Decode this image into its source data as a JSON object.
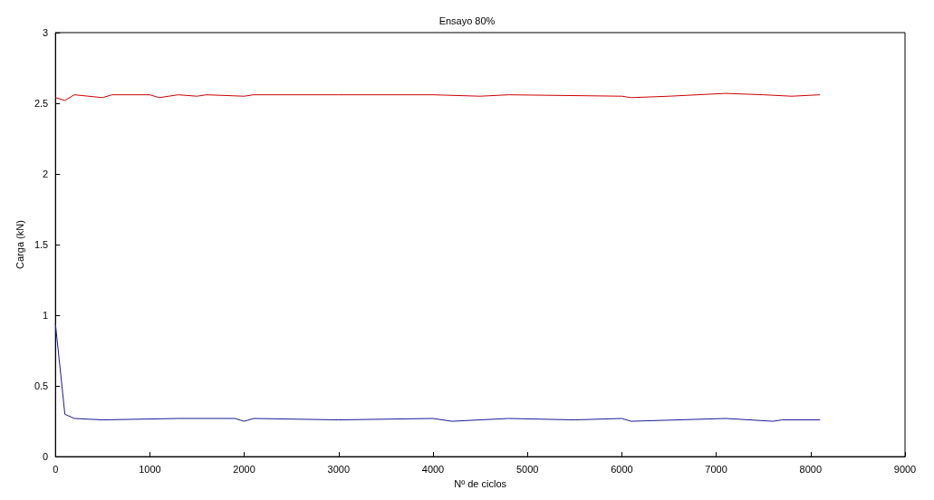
{
  "chart_data": {
    "type": "line",
    "title": "Ensayo 80%",
    "xlabel": "Nº de ciclos",
    "ylabel": "Carga (kN)",
    "xlim": [
      0,
      9000
    ],
    "xticks": [
      0,
      1000,
      2000,
      3000,
      4000,
      5000,
      6000,
      7000,
      8000,
      9000
    ],
    "ylim": [
      0,
      3
    ],
    "yticks": [
      0,
      0.5,
      1,
      1.5,
      2,
      2.5,
      3
    ],
    "grid": false,
    "marker": "none",
    "line_style": "solid",
    "series": [
      {
        "color": "#cc0000",
        "x": [
          0,
          100,
          200,
          500,
          600,
          1000,
          1100,
          1300,
          1500,
          1600,
          2000,
          2100,
          3000,
          4000,
          4500,
          4800,
          6000,
          6100,
          6500,
          7100,
          7500,
          7800,
          8100
        ],
        "values": [
          2.54,
          2.52,
          2.56,
          2.54,
          2.56,
          2.56,
          2.54,
          2.56,
          2.55,
          2.56,
          2.55,
          2.56,
          2.56,
          2.56,
          2.55,
          2.56,
          2.55,
          2.54,
          2.55,
          2.57,
          2.56,
          2.55,
          2.56
        ]
      },
      {
        "color": "#1a1a99",
        "x": [
          0,
          100,
          200,
          500,
          1300,
          1900,
          2000,
          2100,
          3000,
          4000,
          4200,
          4800,
          5500,
          6000,
          6100,
          7100,
          7600,
          7700,
          8100
        ],
        "values": [
          0.94,
          0.3,
          0.27,
          0.26,
          0.27,
          0.27,
          0.25,
          0.27,
          0.26,
          0.27,
          0.25,
          0.27,
          0.26,
          0.27,
          0.25,
          0.27,
          0.25,
          0.26,
          0.26
        ]
      }
    ]
  }
}
